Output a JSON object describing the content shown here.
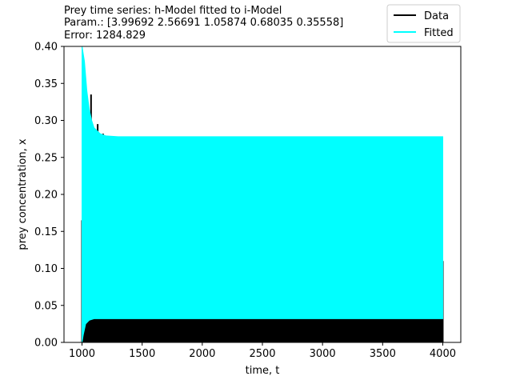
{
  "chart_data": {
    "type": "line",
    "title_lines": [
      "Prey time series: h-Model fitted to i-Model",
      "Param.: [3.99692 2.56691 1.05874 0.68035 0.35558]",
      "Error: 1284.829"
    ],
    "xlabel": "time, t",
    "ylabel": "prey concentration, x",
    "xlim": [
      850,
      4150
    ],
    "ylim": [
      0,
      0.4
    ],
    "xticks": [
      1000,
      1500,
      2000,
      2500,
      3000,
      3500,
      4000
    ],
    "xtick_labels": [
      "1000",
      "1500",
      "2000",
      "2500",
      "3000",
      "3500",
      "4000"
    ],
    "yticks": [
      0,
      0.05,
      0.1,
      0.15,
      0.2,
      0.25,
      0.3,
      0.35,
      0.4
    ],
    "ytick_labels": [
      "0.00",
      "0.05",
      "0.10",
      "0.15",
      "0.20",
      "0.25",
      "0.30",
      "0.35",
      "0.40"
    ],
    "grid": false,
    "legend_position": "top-right",
    "series": [
      {
        "name": "Data",
        "color": "#000000",
        "style": "dense-oscillation",
        "band_upper": [
          [
            1000,
            0.165
          ],
          [
            1010,
            0.04
          ],
          [
            1030,
            0.028
          ],
          [
            1060,
            0.033
          ],
          [
            4000,
            0.033
          ]
        ],
        "band_lower": [
          [
            1000,
            0.0
          ],
          [
            4000,
            0.0
          ]
        ],
        "spikes": [
          {
            "x": 1000,
            "y_low": 0.0,
            "y_high": 0.165
          },
          {
            "x": 1075,
            "y_low": 0.0,
            "y_high": 0.335
          },
          {
            "x": 1130,
            "y_low": 0.0,
            "y_high": 0.295
          },
          {
            "x": 1175,
            "y_low": 0.0,
            "y_high": 0.282
          },
          {
            "x": 4000,
            "y_low": 0.0,
            "y_high": 0.11
          }
        ]
      },
      {
        "name": "Fitted",
        "color": "#00ffff",
        "style": "dense-oscillation",
        "band_upper": [
          [
            1000,
            0.4
          ],
          [
            1020,
            0.38
          ],
          [
            1040,
            0.34
          ],
          [
            1060,
            0.315
          ],
          [
            1080,
            0.3
          ],
          [
            1100,
            0.29
          ],
          [
            1150,
            0.282
          ],
          [
            1200,
            0.279
          ],
          [
            1300,
            0.278
          ],
          [
            4000,
            0.278
          ]
        ],
        "band_lower": [
          [
            1000,
            0.0
          ],
          [
            1010,
            0.01
          ],
          [
            1030,
            0.025
          ],
          [
            1060,
            0.03
          ],
          [
            1100,
            0.032
          ],
          [
            4000,
            0.032
          ]
        ]
      }
    ]
  }
}
